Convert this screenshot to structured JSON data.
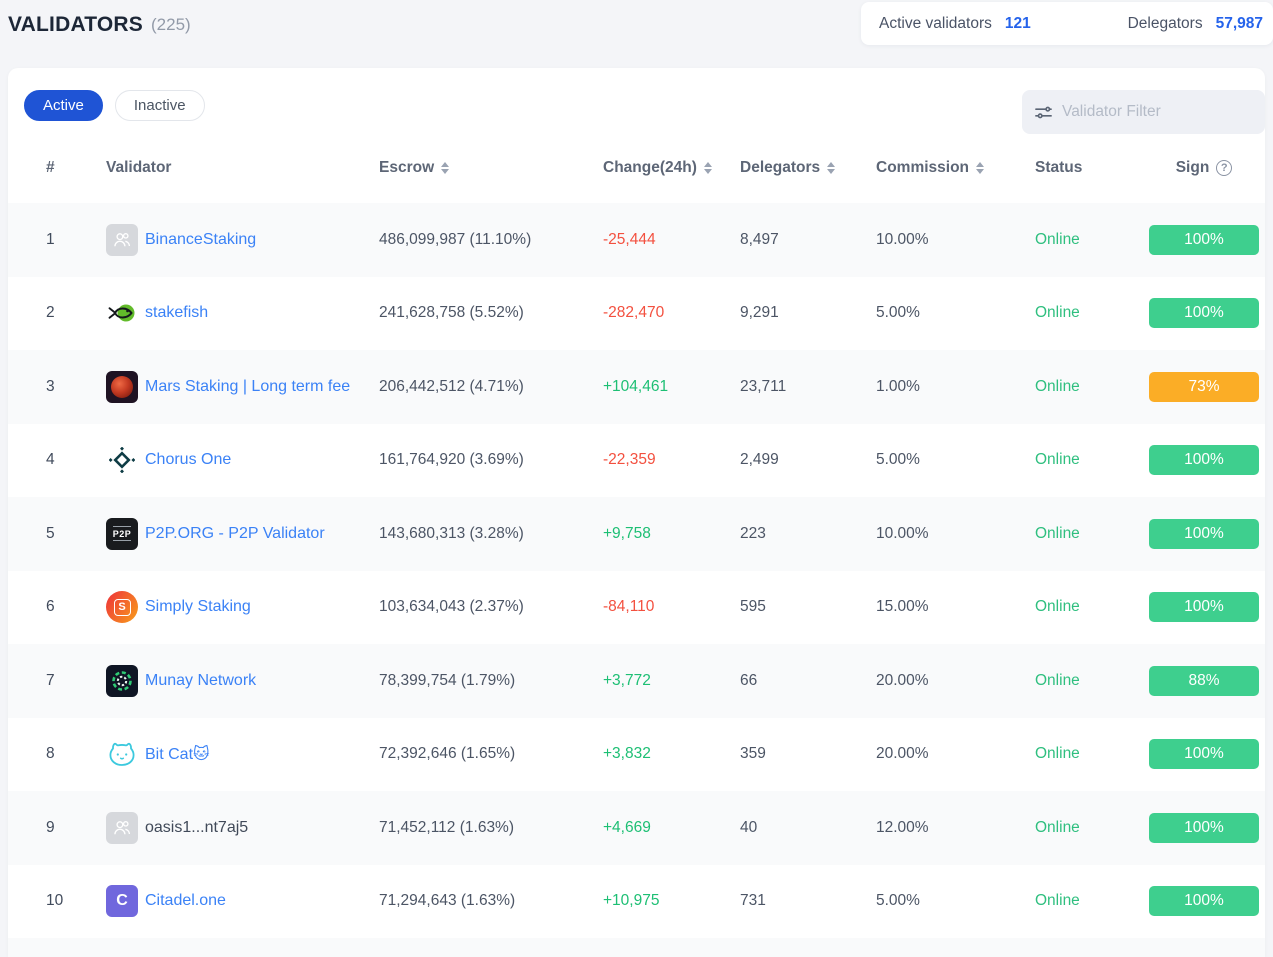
{
  "page": {
    "title": "VALIDATORS",
    "count": "(225)"
  },
  "stats": {
    "active_validators": {
      "label": "Active validators",
      "value": "121"
    },
    "delegators": {
      "label": "Delegators",
      "value": "57,987"
    }
  },
  "tabs": [
    {
      "label": "Active",
      "active": true
    },
    {
      "label": "Inactive",
      "active": false
    }
  ],
  "filter": {
    "placeholder": "Validator Filter",
    "icon": "sliders-filter-icon"
  },
  "table": {
    "headers": {
      "rank": "#",
      "validator": "Validator",
      "escrow": "Escrow",
      "change": "Change(24h)",
      "delegators": "Delegators",
      "commission": "Commission",
      "status": "Status",
      "sign": "Sign"
    },
    "help_glyph": "?",
    "sortable_columns": [
      "escrow",
      "change",
      "delegators",
      "commission"
    ],
    "rows": [
      {
        "rank": "1",
        "avatar": "placeholder",
        "name": "BinanceStaking",
        "link": true,
        "escrow": "486,099,987 (11.10%)",
        "change": "-25,444",
        "change_dir": "down",
        "delegators": "8,497",
        "commission": "10.00%",
        "status": "Online",
        "sign": "100%",
        "sign_color": "green"
      },
      {
        "rank": "2",
        "avatar": "stakefish",
        "name": "stakefish",
        "link": true,
        "escrow": "241,628,758 (5.52%)",
        "change": "-282,470",
        "change_dir": "down",
        "delegators": "9,291",
        "commission": "5.00%",
        "status": "Online",
        "sign": "100%",
        "sign_color": "green"
      },
      {
        "rank": "3",
        "avatar": "mars",
        "name": "Mars Staking | Long term fee",
        "link": true,
        "escrow": "206,442,512 (4.71%)",
        "change": "+104,461",
        "change_dir": "up",
        "delegators": "23,711",
        "commission": "1.00%",
        "status": "Online",
        "sign": "73%",
        "sign_color": "orange"
      },
      {
        "rank": "4",
        "avatar": "chorus",
        "name": "Chorus One",
        "link": true,
        "escrow": "161,764,920 (3.69%)",
        "change": "-22,359",
        "change_dir": "down",
        "delegators": "2,499",
        "commission": "5.00%",
        "status": "Online",
        "sign": "100%",
        "sign_color": "green"
      },
      {
        "rank": "5",
        "avatar": "p2p",
        "avatar_text": "P2P",
        "name": "P2P.ORG - P2P Validator",
        "link": true,
        "escrow": "143,680,313 (3.28%)",
        "change": "+9,758",
        "change_dir": "up",
        "delegators": "223",
        "commission": "10.00%",
        "status": "Online",
        "sign": "100%",
        "sign_color": "green"
      },
      {
        "rank": "6",
        "avatar": "simply",
        "avatar_text": "S",
        "name": "Simply Staking",
        "link": true,
        "escrow": "103,634,043 (2.37%)",
        "change": "-84,110",
        "change_dir": "down",
        "delegators": "595",
        "commission": "15.00%",
        "status": "Online",
        "sign": "100%",
        "sign_color": "green"
      },
      {
        "rank": "7",
        "avatar": "munay",
        "name": "Munay Network",
        "link": true,
        "escrow": "78,399,754 (1.79%)",
        "change": "+3,772",
        "change_dir": "up",
        "delegators": "66",
        "commission": "20.00%",
        "status": "Online",
        "sign": "88%",
        "sign_color": "green"
      },
      {
        "rank": "8",
        "avatar": "bitcat",
        "name": "Bit Cat🐱",
        "link": true,
        "escrow": "72,392,646 (1.65%)",
        "change": "+3,832",
        "change_dir": "up",
        "delegators": "359",
        "commission": "20.00%",
        "status": "Online",
        "sign": "100%",
        "sign_color": "green"
      },
      {
        "rank": "9",
        "avatar": "placeholder",
        "name": "oasis1...nt7aj5",
        "link": false,
        "escrow": "71,452,112 (1.63%)",
        "change": "+4,669",
        "change_dir": "up",
        "delegators": "40",
        "commission": "12.00%",
        "status": "Online",
        "sign": "100%",
        "sign_color": "green"
      },
      {
        "rank": "10",
        "avatar": "citadel",
        "avatar_text": "C",
        "name": "Citadel.one",
        "link": true,
        "escrow": "71,294,643 (1.63%)",
        "change": "+10,975",
        "change_dir": "up",
        "delegators": "731",
        "commission": "5.00%",
        "status": "Online",
        "sign": "100%",
        "sign_color": "green"
      }
    ]
  },
  "colors": {
    "accent_blue": "#1f54d5",
    "link_blue": "#3b82f6",
    "value_blue": "#2563eb",
    "positive_green": "#1dbf74",
    "negative_red": "#f3503f",
    "online_green": "#2fbf7f",
    "badge_green": "#3ecf8e",
    "badge_orange": "#fbad26"
  }
}
